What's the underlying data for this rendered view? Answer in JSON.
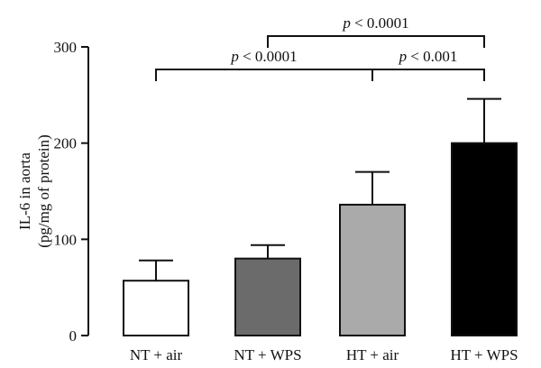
{
  "chart_data": {
    "type": "bar",
    "title": "",
    "xlabel": "",
    "ylabel_lines": [
      "IL-6 in aorta",
      "(pg/mg of protein)"
    ],
    "ylim": [
      0,
      300
    ],
    "yticks": [
      0,
      100,
      200,
      300
    ],
    "categories": [
      "NT + air",
      "NT + WPS",
      "HT + air",
      "HT + WPS"
    ],
    "values": [
      57,
      80,
      136,
      200
    ],
    "errors": [
      21,
      14,
      34,
      46
    ],
    "bar_colors": [
      "#ffffff",
      "#6b6b6b",
      "#aaaaaa",
      "#000000"
    ],
    "grid": false,
    "significance": [
      {
        "from": 0,
        "to": 2,
        "label": "p < 0.0001"
      },
      {
        "from": 2,
        "to": 3,
        "label": "p < 0.001"
      },
      {
        "from": 1,
        "to": 3,
        "label": "p < 0.0001"
      }
    ]
  }
}
